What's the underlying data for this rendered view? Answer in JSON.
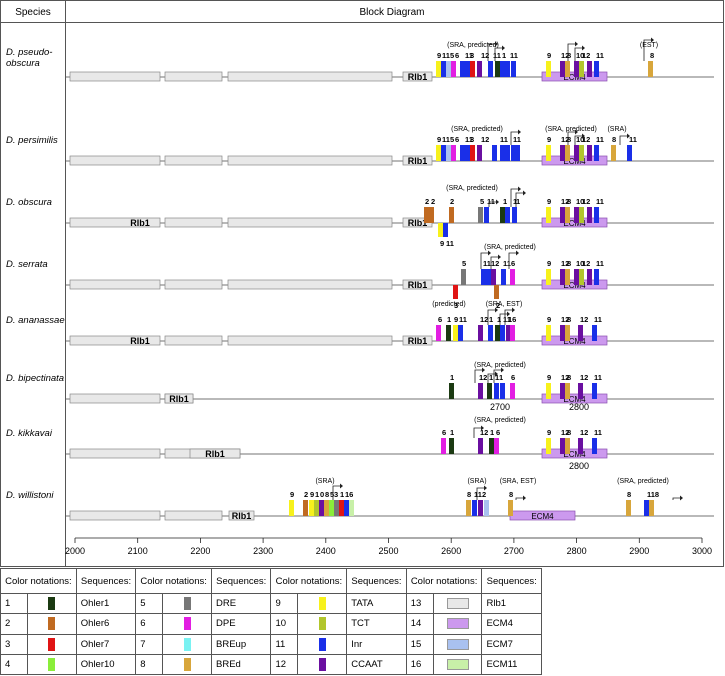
{
  "header": {
    "species": "Species",
    "block": "Block Diagram"
  },
  "colors": {
    "1": "#1b3a12",
    "2": "#c06a21",
    "3": "#e01414",
    "4": "#8aee3a",
    "5": "#777777",
    "6": "#e21ee2",
    "7": "#79f2f2",
    "8": "#d8a63b",
    "9": "#f7f11c",
    "10": "#b2c62c",
    "11": "#1a2fe8",
    "12": "#6a0fa0",
    "13": "#e8e8e8",
    "14": "#cc99ee",
    "15": "#a9c1f0",
    "16": "#c8f0a8"
  },
  "species": [
    {
      "line1": "D. pseudo-",
      "line2": "obscura",
      "rlb1": "Rlb1",
      "ecm4": "ECM4",
      "ann": [
        "(SRA, predicted)",
        "(EST)"
      ],
      "extra": ""
    },
    {
      "line1": "D. persimilis",
      "line2": "",
      "rlb1": "Rlb1",
      "ecm4": "ECM4",
      "ann": [
        "(SRA, predicted)",
        "(SRA, predicted)",
        "(SRA)"
      ],
      "extra": ""
    },
    {
      "line1": "D. obscura",
      "line2": "",
      "rlb1": "Rlb1",
      "ecm4": "ECM4",
      "ann": [
        "(SRA, predicted)"
      ],
      "extra": ""
    },
    {
      "line1": "D. serrata",
      "line2": "",
      "rlb1": "Rlb1",
      "ecm4": "ECM4",
      "ann": [
        "(SRA, predicted)"
      ],
      "extra": ""
    },
    {
      "line1": "D. ananassae",
      "line2": "",
      "rlb1": "Rlb1",
      "ecm4": "ECM4",
      "ann": [
        "(predicted)",
        "(SRA, EST)"
      ],
      "extra": ""
    },
    {
      "line1": "D. bipectinata",
      "line2": "",
      "rlb1": "Rlb1",
      "ecm4": "ECM4",
      "ann": [
        "(SRA, predicted)"
      ],
      "extra": "2700"
    },
    {
      "line1": "D. kikkavai",
      "line2": "",
      "rlb1": "Rlb1",
      "ecm4": "ECM4",
      "ann": [
        "(SRA, predicted)"
      ],
      "extra": "2800"
    },
    {
      "line1": "D. willistoni",
      "line2": "",
      "rlb1": "Rlb1",
      "ecm4": "ECM4",
      "ann": [
        "(SRA)",
        "(SRA)",
        "(SRA, EST)",
        "(SRA, predicted)"
      ],
      "extra": ""
    }
  ],
  "ecm4_label_bip": "2800",
  "axis": {
    "ticks": [
      "2000",
      "2100",
      "2200",
      "2300",
      "2400",
      "2500",
      "2600",
      "2700",
      "2800",
      "2900",
      "3000"
    ]
  },
  "legend": {
    "head_color": "Color notations:",
    "head_seq": "Sequences:",
    "rows": [
      [
        {
          "n": "1",
          "c": "1",
          "s": "Ohler1"
        },
        {
          "n": "5",
          "c": "5",
          "s": "DRE"
        },
        {
          "n": "9",
          "c": "9",
          "s": "TATA"
        },
        {
          "n": "13",
          "c": "13",
          "s": "Rlb1",
          "box": true
        }
      ],
      [
        {
          "n": "2",
          "c": "2",
          "s": "Ohler6"
        },
        {
          "n": "6",
          "c": "6",
          "s": "DPE"
        },
        {
          "n": "10",
          "c": "10",
          "s": "TCT"
        },
        {
          "n": "14",
          "c": "14",
          "s": "ECM4",
          "box": true
        }
      ],
      [
        {
          "n": "3",
          "c": "3",
          "s": "Ohler7"
        },
        {
          "n": "7",
          "c": "7",
          "s": "BREup"
        },
        {
          "n": "11",
          "c": "11",
          "s": "Inr"
        },
        {
          "n": "15",
          "c": "15",
          "s": "ECM7",
          "box": true
        }
      ],
      [
        {
          "n": "4",
          "c": "4",
          "s": "Ohler10"
        },
        {
          "n": "8",
          "c": "8",
          "s": "BREd"
        },
        {
          "n": "12",
          "c": "12",
          "s": "CCAAT"
        },
        {
          "n": "16",
          "c": "16",
          "s": "ECM11",
          "box": true
        }
      ]
    ]
  }
}
